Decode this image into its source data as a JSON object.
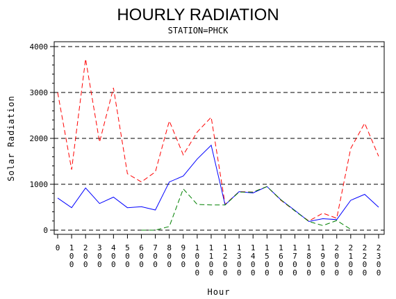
{
  "title": "HOURLY RADIATION",
  "subtitle": "STATION=PHCK",
  "chart_data": {
    "type": "line",
    "title": "HOURLY RADIATION",
    "subtitle": "STATION=PHCK",
    "xlabel": "Hour",
    "ylabel": "Solar Radiation",
    "categories": [
      "0",
      "100",
      "200",
      "300",
      "400",
      "500",
      "600",
      "700",
      "800",
      "900",
      "1000",
      "1100",
      "1200",
      "1300",
      "1400",
      "1500",
      "1600",
      "1700",
      "1800",
      "1900",
      "2000",
      "2100",
      "2200",
      "2300"
    ],
    "ylim": [
      0,
      4000
    ],
    "yticks": [
      "0",
      "1000",
      "2000",
      "3000",
      "4000"
    ],
    "grid": "horizontal dashed",
    "series": [
      {
        "color": "#ff0000",
        "style": "dashed",
        "values": [
          3000,
          1320,
          3730,
          1920,
          3100,
          1230,
          1050,
          1270,
          2380,
          1640,
          2140,
          2460,
          560,
          840,
          830,
          950,
          650,
          420,
          200,
          370,
          260,
          1780,
          2330,
          1610
        ]
      },
      {
        "color": "#0000ff",
        "style": "solid",
        "values": [
          700,
          490,
          920,
          580,
          720,
          490,
          510,
          440,
          1050,
          1180,
          1550,
          1850,
          550,
          840,
          810,
          950,
          660,
          430,
          190,
          250,
          230,
          650,
          780,
          500
        ]
      },
      {
        "color": "#008000",
        "style": "dashed",
        "values": [
          null,
          null,
          null,
          null,
          null,
          null,
          0,
          0,
          80,
          900,
          560,
          550,
          550,
          830,
          830,
          950,
          660,
          420,
          190,
          100,
          210,
          20,
          null,
          null
        ]
      }
    ]
  }
}
